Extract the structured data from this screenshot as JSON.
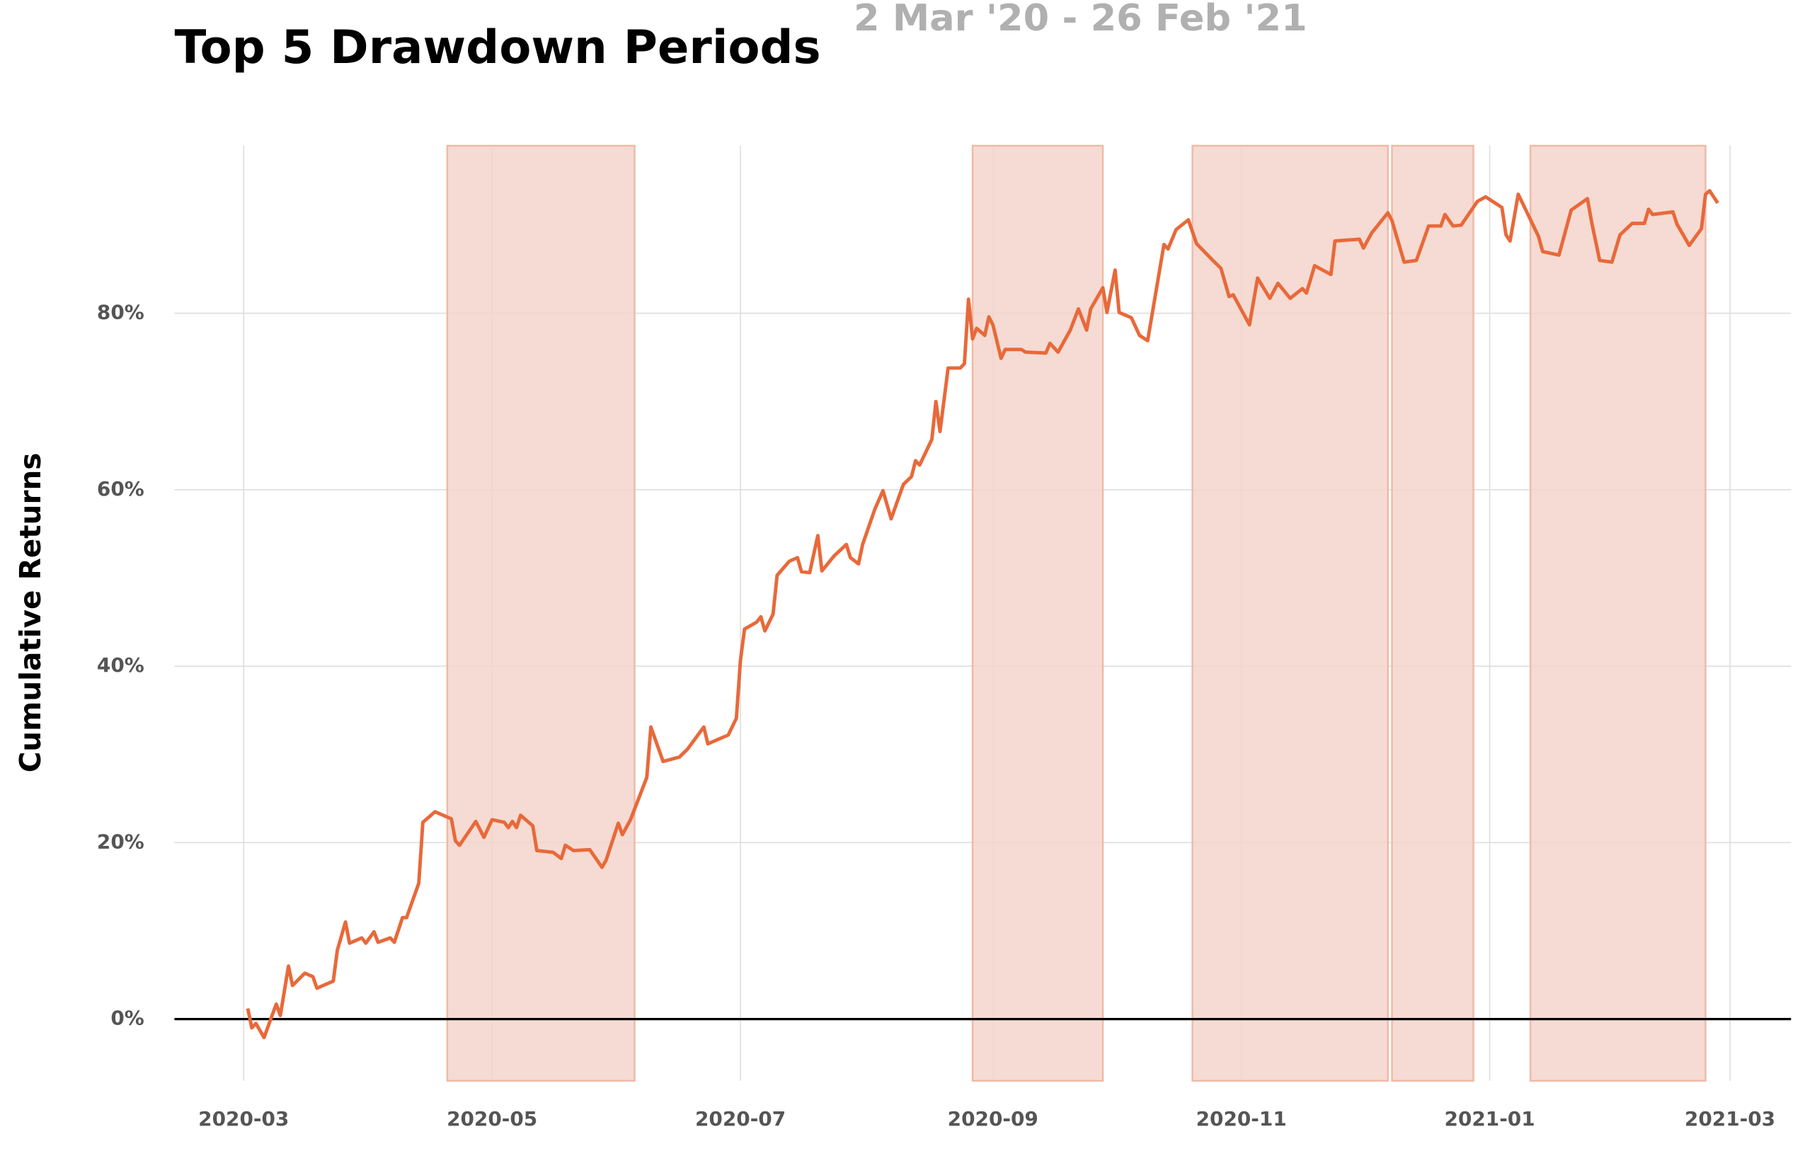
{
  "chart_data": {
    "type": "line",
    "title": "Top 5 Drawdown Periods",
    "subtitle": "2 Mar '20 - 26 Feb '21",
    "y_label": "Cumulative Returns",
    "color": "#e8693a",
    "period_color": "#f3d5cb",
    "grid": true,
    "xlim": [
      "2020-02-13",
      "2021-03-16"
    ],
    "ylim": [
      -7,
      99
    ],
    "xticks": [
      {
        "value": "2020-03-01",
        "label": "2020-03"
      },
      {
        "value": "2020-05-01",
        "label": "2020-05"
      },
      {
        "value": "2020-07-01",
        "label": "2020-07"
      },
      {
        "value": "2020-09-01",
        "label": "2020-09"
      },
      {
        "value": "2020-11-01",
        "label": "2020-11"
      },
      {
        "value": "2021-01-01",
        "label": "2021-01"
      },
      {
        "value": "2021-03-01",
        "label": "2021-03"
      }
    ],
    "yticks": [
      {
        "value": 0,
        "label": "0%"
      },
      {
        "value": 20,
        "label": "20%"
      },
      {
        "value": 40,
        "label": "40%"
      },
      {
        "value": 60,
        "label": "60%"
      },
      {
        "value": 80,
        "label": "80%"
      }
    ],
    "periods": [
      {
        "start": "2020-04-20",
        "end": "2020-06-05"
      },
      {
        "start": "2020-08-27",
        "end": "2020-09-28"
      },
      {
        "start": "2020-10-20",
        "end": "2020-12-07"
      },
      {
        "start": "2020-12-08",
        "end": "2020-12-28"
      },
      {
        "start": "2021-01-11",
        "end": "2021-02-23"
      }
    ],
    "x": [
      "2020-03-02",
      "2020-03-03",
      "2020-03-04",
      "2020-03-06",
      "2020-03-09",
      "2020-03-10",
      "2020-03-12",
      "2020-03-13",
      "2020-03-16",
      "2020-03-18",
      "2020-03-19",
      "2020-03-23",
      "2020-03-24",
      "2020-03-26",
      "2020-03-27",
      "2020-03-30",
      "2020-03-31",
      "2020-04-02",
      "2020-04-03",
      "2020-04-06",
      "2020-04-07",
      "2020-04-09",
      "2020-04-10",
      "2020-04-13",
      "2020-04-14",
      "2020-04-17",
      "2020-04-21",
      "2020-04-22",
      "2020-04-23",
      "2020-04-27",
      "2020-04-29",
      "2020-05-01",
      "2020-05-04",
      "2020-05-05",
      "2020-05-06",
      "2020-05-07",
      "2020-05-08",
      "2020-05-11",
      "2020-05-12",
      "2020-05-16",
      "2020-05-18",
      "2020-05-19",
      "2020-05-21",
      "2020-05-25",
      "2020-05-28",
      "2020-05-29",
      "2020-06-01",
      "2020-06-02",
      "2020-06-04",
      "2020-06-08",
      "2020-06-09",
      "2020-06-12",
      "2020-06-16",
      "2020-06-18",
      "2020-06-22",
      "2020-06-23",
      "2020-06-28",
      "2020-06-30",
      "2020-07-01",
      "2020-07-02",
      "2020-07-05",
      "2020-07-06",
      "2020-07-07",
      "2020-07-09",
      "2020-07-10",
      "2020-07-13",
      "2020-07-15",
      "2020-07-16",
      "2020-07-18",
      "2020-07-20",
      "2020-07-21",
      "2020-07-24",
      "2020-07-27",
      "2020-07-28",
      "2020-07-30",
      "2020-07-31",
      "2020-08-03",
      "2020-08-05",
      "2020-08-07",
      "2020-08-10",
      "2020-08-12",
      "2020-08-13",
      "2020-08-14",
      "2020-08-17",
      "2020-08-18",
      "2020-08-19",
      "2020-08-21",
      "2020-08-24",
      "2020-08-25",
      "2020-08-26",
      "2020-08-27",
      "2020-08-28",
      "2020-08-30",
      "2020-08-31",
      "2020-09-01",
      "2020-09-03",
      "2020-09-04",
      "2020-09-08",
      "2020-09-09",
      "2020-09-14",
      "2020-09-15",
      "2020-09-17",
      "2020-09-20",
      "2020-09-22",
      "2020-09-24",
      "2020-09-25",
      "2020-09-28",
      "2020-09-29",
      "2020-10-01",
      "2020-10-02",
      "2020-10-05",
      "2020-10-07",
      "2020-10-09",
      "2020-10-13",
      "2020-10-14",
      "2020-10-15",
      "2020-10-16",
      "2020-10-19",
      "2020-10-21",
      "2020-10-25",
      "2020-10-27",
      "2020-10-29",
      "2020-10-30",
      "2020-11-03",
      "2020-11-05",
      "2020-11-08",
      "2020-11-10",
      "2020-11-13",
      "2020-11-16",
      "2020-11-17",
      "2020-11-19",
      "2020-11-23",
      "2020-11-24",
      "2020-11-30",
      "2020-12-01",
      "2020-12-03",
      "2020-12-07",
      "2020-12-08",
      "2020-12-11",
      "2020-12-14",
      "2020-12-17",
      "2020-12-20",
      "2020-12-21",
      "2020-12-23",
      "2020-12-25",
      "2020-12-29",
      "2020-12-31",
      "2021-01-04",
      "2021-01-05",
      "2021-01-06",
      "2021-01-08",
      "2021-01-13",
      "2021-01-14",
      "2021-01-18",
      "2021-01-21",
      "2021-01-25",
      "2021-01-26",
      "2021-01-28",
      "2021-01-31",
      "2021-02-02",
      "2021-02-05",
      "2021-02-08",
      "2021-02-09",
      "2021-02-10",
      "2021-02-15",
      "2021-02-16",
      "2021-02-19",
      "2021-02-22",
      "2021-02-23",
      "2021-02-24",
      "2021-02-26"
    ],
    "values": [
      1.2,
      -1.0,
      -0.5,
      -2.1,
      1.7,
      0.4,
      6.0,
      3.8,
      5.2,
      4.8,
      3.5,
      4.3,
      7.8,
      11.0,
      8.6,
      9.2,
      8.6,
      9.9,
      8.7,
      9.2,
      8.7,
      11.5,
      11.5,
      15.4,
      22.3,
      23.5,
      22.7,
      20.2,
      19.7,
      22.4,
      20.6,
      22.6,
      22.3,
      21.7,
      22.4,
      21.7,
      23.1,
      21.9,
      19.1,
      18.9,
      18.2,
      19.7,
      19.1,
      19.2,
      17.2,
      18.0,
      22.2,
      20.9,
      22.6,
      27.4,
      33.1,
      29.2,
      29.7,
      30.6,
      33.1,
      31.2,
      32.2,
      34.1,
      40.7,
      44.2,
      45.0,
      45.6,
      44.0,
      45.9,
      50.3,
      51.9,
      52.3,
      50.7,
      50.6,
      54.8,
      50.8,
      52.5,
      53.8,
      52.3,
      51.6,
      53.8,
      57.8,
      59.9,
      56.7,
      60.6,
      61.5,
      63.3,
      62.8,
      65.7,
      70.0,
      66.6,
      73.8,
      73.8,
      74.3,
      81.6,
      77.1,
      78.3,
      77.5,
      79.6,
      78.7,
      74.9,
      75.9,
      75.9,
      75.6,
      75.5,
      76.6,
      75.6,
      78.1,
      80.5,
      78.1,
      80.5,
      82.9,
      80.1,
      84.9,
      80.1,
      79.5,
      77.5,
      76.9,
      87.8,
      87.3,
      88.4,
      89.5,
      90.6,
      87.9,
      86.0,
      85.1,
      81.9,
      82.1,
      78.7,
      84.0,
      81.7,
      83.4,
      81.7,
      82.8,
      82.3,
      85.4,
      84.4,
      88.2,
      88.4,
      87.4,
      89.1,
      91.4,
      90.5,
      85.8,
      86.0,
      89.9,
      89.9,
      91.2,
      89.9,
      90.0,
      92.7,
      93.2,
      92.0,
      88.9,
      88.2,
      93.5,
      88.7,
      87.0,
      86.6,
      91.7,
      93.0,
      90.4,
      86.0,
      85.8,
      88.9,
      90.2,
      90.2,
      91.8,
      91.2,
      91.5,
      90.1,
      87.7,
      89.6,
      93.5,
      93.9,
      92.5
    ]
  }
}
